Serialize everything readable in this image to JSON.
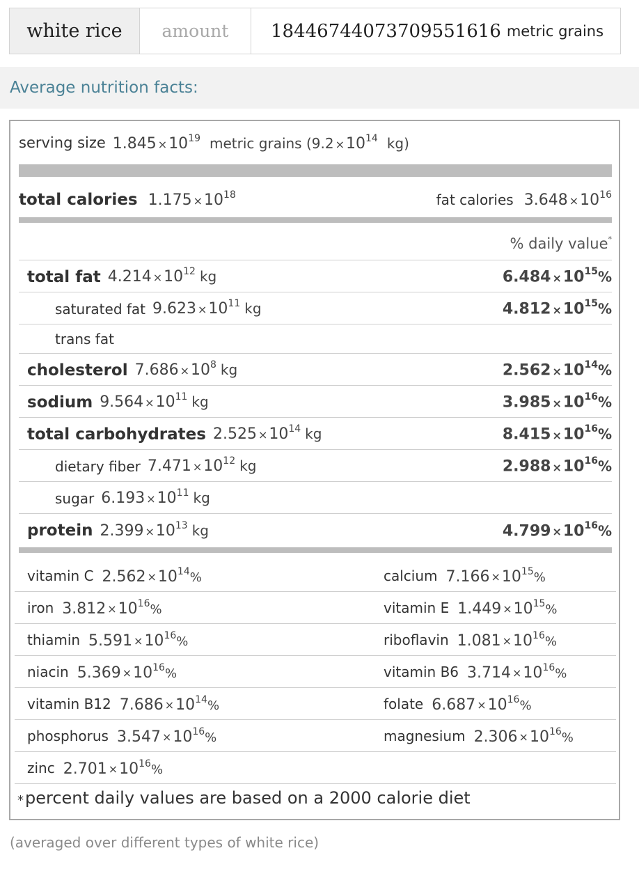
{
  "input": {
    "food": "white rice",
    "label": "amount",
    "value": "18446744073709551616",
    "unit": "metric grains"
  },
  "pod": {
    "title": "Average nutrition facts:"
  },
  "label": {
    "serving": {
      "prefix": "serving size",
      "mantissa": "1.845",
      "exp": "19",
      "unit": "metric grains (9.2",
      "alt_exp": "14",
      "alt_unit": "kg)"
    },
    "total_calories": {
      "name": "total calories",
      "mantissa": "1.175",
      "exp": "18"
    },
    "fat_calories": {
      "name": "fat calories",
      "mantissa": "3.648",
      "exp": "16"
    },
    "dv_header": "% daily value",
    "dv_star": "*",
    "times": "×",
    "ten": "10",
    "pct": "%",
    "nutrients": [
      {
        "name": "total fat",
        "mantissa": "4.214",
        "exp": "12",
        "unit": "kg",
        "dv_m": "6.484",
        "dv_e": "15"
      },
      {
        "name": "saturated fat",
        "mantissa": "9.623",
        "exp": "11",
        "unit": "kg",
        "dv_m": "4.812",
        "dv_e": "15"
      },
      {
        "name": "trans fat"
      },
      {
        "name": "cholesterol",
        "mantissa": "7.686",
        "exp": "8",
        "unit": "kg",
        "dv_m": "2.562",
        "dv_e": "14"
      },
      {
        "name": "sodium",
        "mantissa": "9.564",
        "exp": "11",
        "unit": "kg",
        "dv_m": "3.985",
        "dv_e": "16"
      },
      {
        "name": "total carbohydrates",
        "mantissa": "2.525",
        "exp": "14",
        "unit": "kg",
        "dv_m": "8.415",
        "dv_e": "16"
      },
      {
        "name": "dietary fiber",
        "mantissa": "7.471",
        "exp": "12",
        "unit": "kg",
        "dv_m": "2.988",
        "dv_e": "16"
      },
      {
        "name": "sugar",
        "mantissa": "6.193",
        "exp": "11",
        "unit": "kg"
      },
      {
        "name": "protein",
        "mantissa": "2.399",
        "exp": "13",
        "unit": "kg",
        "dv_m": "4.799",
        "dv_e": "16"
      }
    ],
    "vitamins": [
      [
        {
          "name": "vitamin C",
          "m": "2.562",
          "e": "14"
        },
        {
          "name": "calcium",
          "m": "7.166",
          "e": "15"
        }
      ],
      [
        {
          "name": "iron",
          "m": "3.812",
          "e": "16"
        },
        {
          "name": "vitamin E",
          "m": "1.449",
          "e": "15"
        }
      ],
      [
        {
          "name": "thiamin",
          "m": "5.591",
          "e": "16"
        },
        {
          "name": "riboflavin",
          "m": "1.081",
          "e": "16"
        }
      ],
      [
        {
          "name": "niacin",
          "m": "5.369",
          "e": "16"
        },
        {
          "name": "vitamin B6",
          "m": "3.714",
          "e": "16"
        }
      ],
      [
        {
          "name": "vitamin B12",
          "m": "7.686",
          "e": "14"
        },
        {
          "name": "folate",
          "m": "6.687",
          "e": "16"
        }
      ],
      [
        {
          "name": "phosphorus",
          "m": "3.547",
          "e": "16"
        },
        {
          "name": "magnesium",
          "m": "2.306",
          "e": "16"
        }
      ],
      [
        {
          "name": "zinc",
          "m": "2.701",
          "e": "16"
        }
      ]
    ],
    "footnote_star": "*",
    "footnote": "percent daily values are based on a 2000 calorie diet"
  },
  "source_note": "(averaged over different types of white rice)"
}
